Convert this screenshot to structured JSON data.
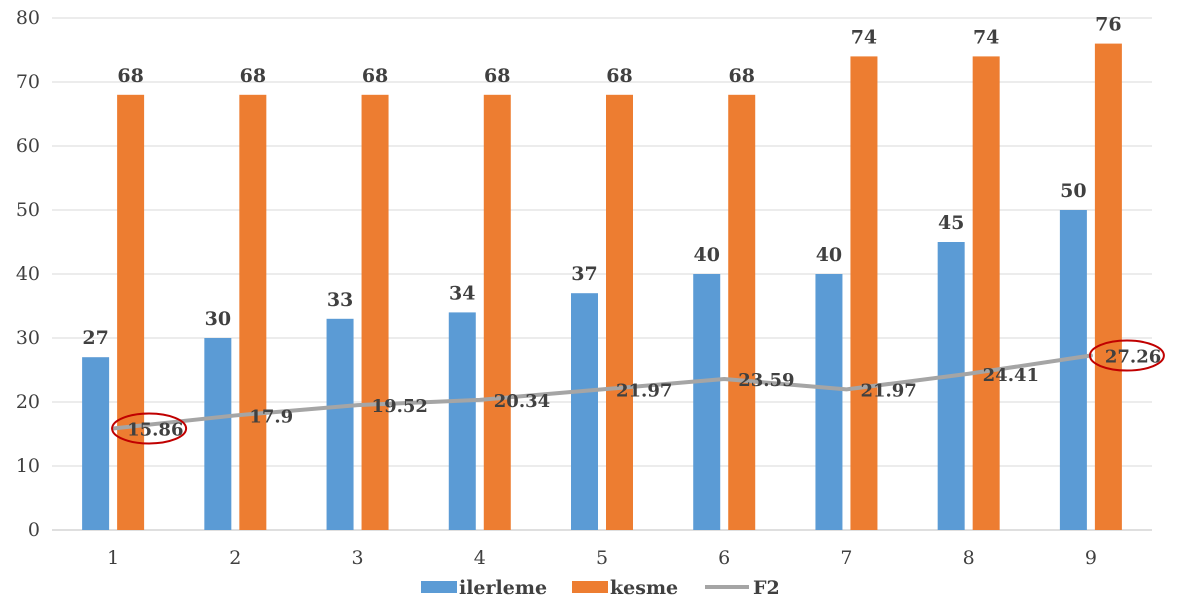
{
  "chart_data": {
    "type": "bar",
    "categories": [
      "1",
      "2",
      "3",
      "4",
      "5",
      "6",
      "7",
      "8",
      "9"
    ],
    "ylim": [
      0,
      80
    ],
    "yticks": [
      "0",
      "10",
      "20",
      "30",
      "40",
      "50",
      "60",
      "70",
      "80"
    ],
    "grid": true,
    "legend_position": "bottom",
    "series": [
      {
        "name": "ilerleme",
        "type": "bar",
        "color": "#5b9bd5",
        "values": [
          27,
          30,
          33,
          34,
          37,
          40,
          40,
          45,
          50
        ]
      },
      {
        "name": "kesme",
        "type": "bar",
        "color": "#ed7d31",
        "values": [
          68,
          68,
          68,
          68,
          68,
          68,
          74,
          74,
          76
        ]
      },
      {
        "name": "F2",
        "type": "line",
        "color": "#a5a5a5",
        "values": [
          15.86,
          17.9,
          19.52,
          20.34,
          21.97,
          23.59,
          21.97,
          24.41,
          27.26
        ],
        "labels": [
          "15.86",
          "17.9",
          "19.52",
          "20.34",
          "21.97",
          "23.59",
          "21.97",
          "24.41",
          "27.26"
        ]
      }
    ],
    "annotations": [
      {
        "type": "ellipse",
        "color": "#c00000",
        "target_series": "F2",
        "target_index": 0
      },
      {
        "type": "ellipse",
        "color": "#c00000",
        "target_series": "F2",
        "target_index": 8
      }
    ]
  }
}
